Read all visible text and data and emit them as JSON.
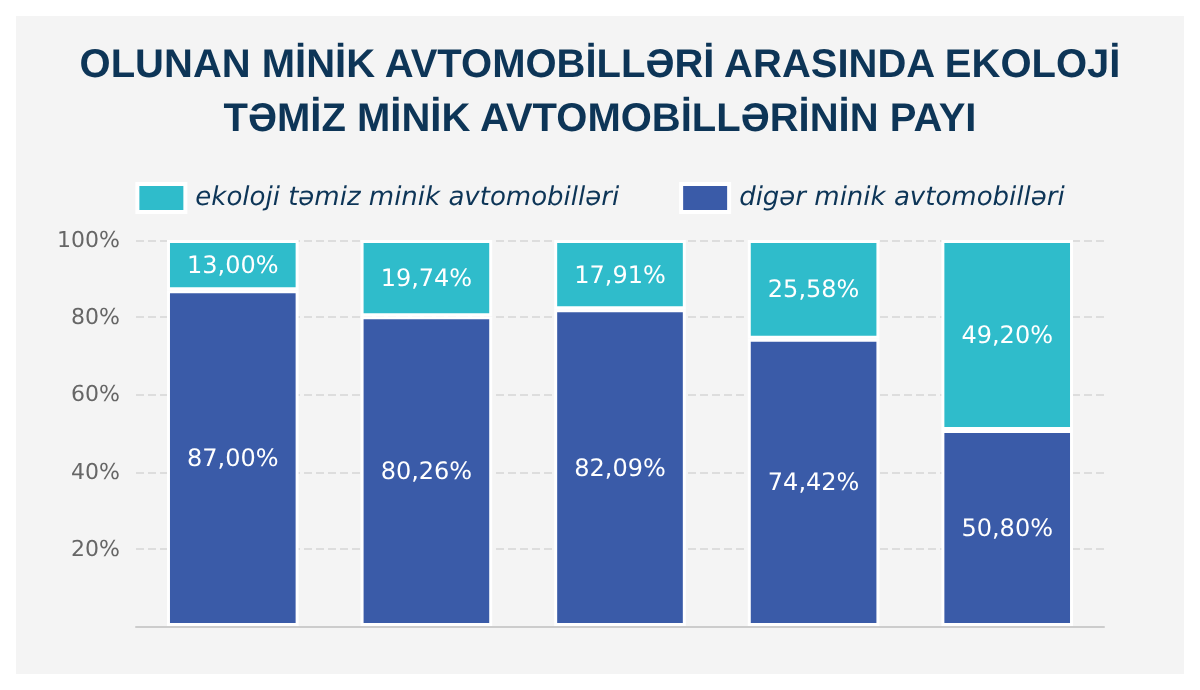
{
  "chart_data": {
    "type": "bar",
    "stacked": true,
    "title": "OLUNAN MİNİK AVTOMOBİLLƏRİ ARASINDA EKOLOJİ\nTƏMİZ MİNİK AVTOMOBİLLƏRİNİN PAYI",
    "categories": [
      null,
      null,
      null,
      null,
      null
    ],
    "series": [
      {
        "name": "digər minik avtomobilləri",
        "color": "#3a5ba8",
        "values": [
          87.0,
          80.26,
          82.09,
          74.42,
          50.8
        ],
        "value_labels": [
          "87,00%",
          "80,26%",
          "82,09%",
          "74,42%",
          "50,80%"
        ]
      },
      {
        "name": "ekoloji təmiz minik avtomobilləri",
        "color": "#2fbccb",
        "values": [
          13.0,
          19.74,
          17.91,
          25.58,
          49.2
        ],
        "value_labels": [
          "13,00%",
          "19,74%",
          "17,91%",
          "25,58%",
          "49,20%"
        ]
      }
    ],
    "ylim": [
      0,
      100
    ],
    "yticks": [
      {
        "value": 20,
        "label": "20%"
      },
      {
        "value": 40,
        "label": "40%"
      },
      {
        "value": 60,
        "label": "60%"
      },
      {
        "value": 80,
        "label": "80%"
      },
      {
        "value": 100,
        "label": "100%"
      }
    ],
    "grid": "y",
    "legend": "top"
  }
}
